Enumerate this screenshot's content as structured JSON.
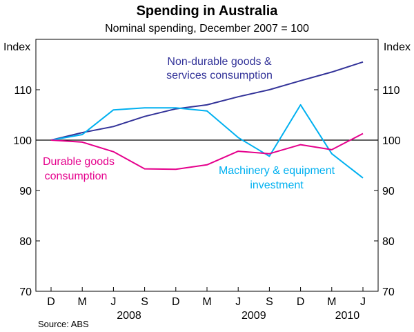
{
  "chart_data": {
    "type": "line",
    "title": "Spending in Australia",
    "subtitle": "Nominal spending, December 2007 = 100",
    "ylabel_left": "Index",
    "ylabel_right": "Index",
    "ylim": [
      70,
      120
    ],
    "yticks": [
      70,
      80,
      90,
      100,
      110
    ],
    "categories": [
      "D",
      "M",
      "J",
      "S",
      "D",
      "M",
      "J",
      "S",
      "D",
      "M",
      "J"
    ],
    "years": [
      {
        "label": "2008",
        "from": 1,
        "to": 4
      },
      {
        "label": "2009",
        "from": 5,
        "to": 8
      },
      {
        "label": "2010",
        "from": 9,
        "to": 10
      }
    ],
    "reference_line": 100,
    "series": [
      {
        "name": "Non-durable goods & services consumption",
        "label_lines": [
          "Non-durable goods &",
          "services consumption"
        ],
        "color": "#333399",
        "values": [
          100,
          101.5,
          102.7,
          104.7,
          106.2,
          107.0,
          108.6,
          110.0,
          111.8,
          113.5,
          115.5
        ]
      },
      {
        "name": "Machinery & equipment investment",
        "label_lines": [
          "Machinery & equipment",
          "investment"
        ],
        "color": "#00B0F0",
        "values": [
          100,
          101.1,
          106.0,
          106.4,
          106.4,
          105.8,
          100.5,
          96.8,
          107.0,
          97.3,
          92.5
        ]
      },
      {
        "name": "Durable goods consumption",
        "label_lines": [
          "Durable goods",
          "consumption"
        ],
        "color": "#E5008C",
        "values": [
          100,
          99.6,
          97.7,
          94.3,
          94.2,
          95.1,
          97.8,
          97.3,
          99.1,
          98.1,
          101.3
        ]
      }
    ],
    "source": "Source: ABS"
  }
}
